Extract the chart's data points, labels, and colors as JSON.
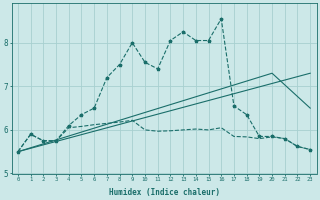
{
  "xlabel": "Humidex (Indice chaleur)",
  "bg_color": "#cce8e8",
  "grid_color": "#a8d0d0",
  "line_color": "#1a6e6a",
  "xlim": [
    -0.5,
    23.5
  ],
  "ylim": [
    5.0,
    8.9
  ],
  "yticks": [
    5,
    6,
    7,
    8
  ],
  "xticks": [
    0,
    1,
    2,
    3,
    4,
    5,
    6,
    7,
    8,
    9,
    10,
    11,
    12,
    13,
    14,
    15,
    16,
    17,
    18,
    19,
    20,
    21,
    22,
    23
  ],
  "line1_x": [
    0,
    1,
    2,
    3,
    4,
    5,
    6,
    7,
    8,
    9,
    10,
    11,
    12,
    13,
    14,
    15,
    16,
    17,
    18,
    19,
    20,
    21,
    22,
    23
  ],
  "line1_y": [
    5.5,
    5.9,
    5.75,
    5.75,
    6.1,
    6.35,
    6.5,
    7.2,
    7.5,
    8.0,
    7.55,
    7.4,
    8.05,
    8.25,
    8.05,
    8.05,
    8.55,
    6.55,
    6.35,
    5.85,
    5.85,
    5.8,
    5.62,
    5.55
  ],
  "line2_x": [
    0,
    1,
    2,
    3,
    4,
    5,
    6,
    7,
    8,
    9,
    10,
    11,
    12,
    13,
    14,
    15,
    16,
    17,
    18,
    19,
    20,
    21,
    22,
    23
  ],
  "line2_y": [
    5.5,
    5.9,
    5.75,
    5.75,
    6.05,
    6.08,
    6.12,
    6.15,
    6.18,
    6.22,
    6.0,
    5.97,
    5.98,
    6.0,
    6.02,
    6.0,
    6.05,
    5.85,
    5.84,
    5.8,
    5.84,
    5.8,
    5.62,
    5.55
  ],
  "line3_x": [
    0,
    23
  ],
  "line3_y": [
    5.5,
    7.3
  ],
  "line4_x": [
    0,
    20,
    23
  ],
  "line4_y": [
    5.5,
    7.3,
    6.5
  ]
}
